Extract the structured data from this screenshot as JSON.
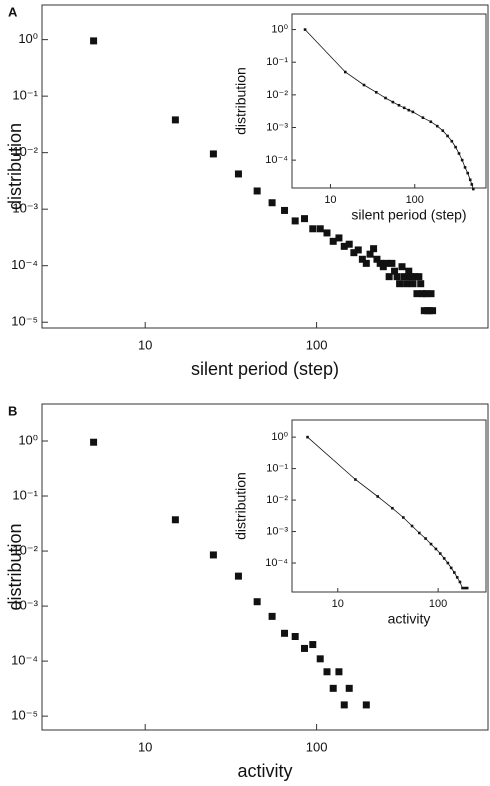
{
  "chart_data": [
    {
      "type": "scatter",
      "label": "A",
      "x_label": "silent period (step)",
      "y_label": "distribution",
      "log_x": true,
      "log_y": true,
      "color": "#111111",
      "x": [
        5,
        15,
        25,
        35,
        45,
        55,
        65,
        75,
        85,
        95,
        105,
        115,
        125,
        135,
        145,
        155,
        165,
        175,
        185,
        195,
        205,
        215,
        225,
        235,
        245,
        255,
        265,
        275,
        285,
        295,
        305,
        315,
        325,
        335,
        345,
        355,
        365,
        375,
        385,
        395,
        405,
        415,
        425,
        435,
        445,
        455,
        465,
        475
      ],
      "values": [
        0.95,
        0.038,
        0.0095,
        0.0042,
        0.0021,
        0.0013,
        0.00095,
        0.00062,
        0.00068,
        0.00045,
        0.00045,
        0.00038,
        0.00027,
        0.00031,
        0.00022,
        0.00024,
        0.00017,
        0.00019,
        0.00013,
        0.00011,
        0.00016,
        0.0002,
        0.00013,
        0.00011,
        9.6e-05,
        0.00011,
        6.4e-05,
        0.00011,
        8e-05,
        6.4e-05,
        4.8e-05,
        9.6e-05,
        6.4e-05,
        4.8e-05,
        8e-05,
        6.4e-05,
        4.8e-05,
        6.4e-05,
        3.2e-05,
        6.4e-05,
        4.8e-05,
        3.2e-05,
        1.6e-05,
        3.2e-05,
        1.6e-05,
        1.6e-05,
        3.2e-05,
        1.6e-05
      ],
      "xlim": [
        2.5,
        1000
      ],
      "ylim": [
        7.9e-06,
        4.1
      ],
      "xticks": [
        10,
        100
      ],
      "yticks": [
        {
          "value": 1,
          "label": "10⁰"
        },
        {
          "value": 0.1,
          "label": "10⁻¹"
        },
        {
          "value": 0.01,
          "label": "10⁻²"
        },
        {
          "value": 0.001,
          "label": "10⁻³"
        },
        {
          "value": 0.0001,
          "label": "10⁻⁴"
        },
        {
          "value": 1e-05,
          "label": "10⁻⁵"
        }
      ]
    },
    {
      "type": "line",
      "x_label": "silent period (step)",
      "y_label": "distribution",
      "log_x": true,
      "log_y": true,
      "color": "#111111",
      "x": [
        5,
        15,
        25,
        35,
        45,
        55,
        65,
        75,
        85,
        95,
        125,
        155,
        185,
        215,
        245,
        275,
        305,
        335,
        365,
        395,
        425,
        455,
        475,
        495
      ],
      "values": [
        1,
        0.05,
        0.02,
        0.012,
        0.008,
        0.006,
        0.0048,
        0.004,
        0.0034,
        0.003,
        0.002,
        0.0015,
        0.0011,
        0.0008,
        0.00055,
        0.00038,
        0.00025,
        0.00016,
        0.0001,
        6e-05,
        4e-05,
        2.5e-05,
        1.8e-05,
        1.3e-05
      ],
      "xlim": [
        3.5,
        700
      ],
      "ylim": [
        1.4e-05,
        3
      ],
      "xticks": [
        10,
        100
      ],
      "yticks": [
        {
          "value": 1,
          "label": "10⁰"
        },
        {
          "value": 0.1,
          "label": "10⁻¹"
        },
        {
          "value": 0.01,
          "label": "10⁻²"
        },
        {
          "value": 0.001,
          "label": "10⁻³"
        },
        {
          "value": 0.0001,
          "label": "10⁻⁴"
        }
      ]
    },
    {
      "type": "scatter",
      "label": "B",
      "x_label": "activity",
      "y_label": "distribution",
      "log_x": true,
      "log_y": true,
      "color": "#111111",
      "x": [
        5,
        15,
        25,
        35,
        45,
        55,
        65,
        75,
        85,
        95,
        105,
        115,
        125,
        135,
        145,
        155,
        195
      ],
      "values": [
        0.95,
        0.037,
        0.0085,
        0.0035,
        0.0012,
        0.00065,
        0.00032,
        0.00028,
        0.00017,
        0.0002,
        0.00011,
        6.4e-05,
        3.2e-05,
        6.4e-05,
        1.6e-05,
        3.2e-05,
        1.6e-05
      ],
      "xlim": [
        2.5,
        1000
      ],
      "ylim": [
        5.6e-06,
        4.7
      ],
      "xticks": [
        10,
        100
      ],
      "yticks": [
        {
          "value": 1,
          "label": "10⁰"
        },
        {
          "value": 0.1,
          "label": "10⁻¹"
        },
        {
          "value": 0.01,
          "label": "10⁻²"
        },
        {
          "value": 0.001,
          "label": "10⁻³"
        },
        {
          "value": 0.0001,
          "label": "10⁻⁴"
        },
        {
          "value": 1e-05,
          "label": "10⁻⁵"
        }
      ]
    },
    {
      "type": "line",
      "x_label": "activity",
      "y_label": "distribution",
      "log_x": true,
      "log_y": true,
      "color": "#111111",
      "x": [
        5,
        15,
        25,
        35,
        45,
        55,
        65,
        75,
        85,
        95,
        105,
        115,
        125,
        135,
        145,
        155,
        165,
        175,
        185,
        195
      ],
      "values": [
        1,
        0.045,
        0.013,
        0.0055,
        0.0028,
        0.0015,
        0.0009,
        0.0006,
        0.0004,
        0.00028,
        0.0002,
        0.00014,
        0.0001,
        7e-05,
        5e-05,
        3.5e-05,
        2.5e-05,
        1.6e-05,
        1.6e-05,
        1.6e-05
      ],
      "xlim": [
        3.5,
        300
      ],
      "ylim": [
        1.2e-05,
        3.5
      ],
      "xticks": [
        10,
        100
      ],
      "yticks": [
        {
          "value": 1,
          "label": "10⁰"
        },
        {
          "value": 0.1,
          "label": "10⁻¹"
        },
        {
          "value": 0.01,
          "label": "10⁻²"
        },
        {
          "value": 0.001,
          "label": "10⁻³"
        },
        {
          "value": 0.0001,
          "label": "10⁻⁴"
        }
      ]
    }
  ]
}
